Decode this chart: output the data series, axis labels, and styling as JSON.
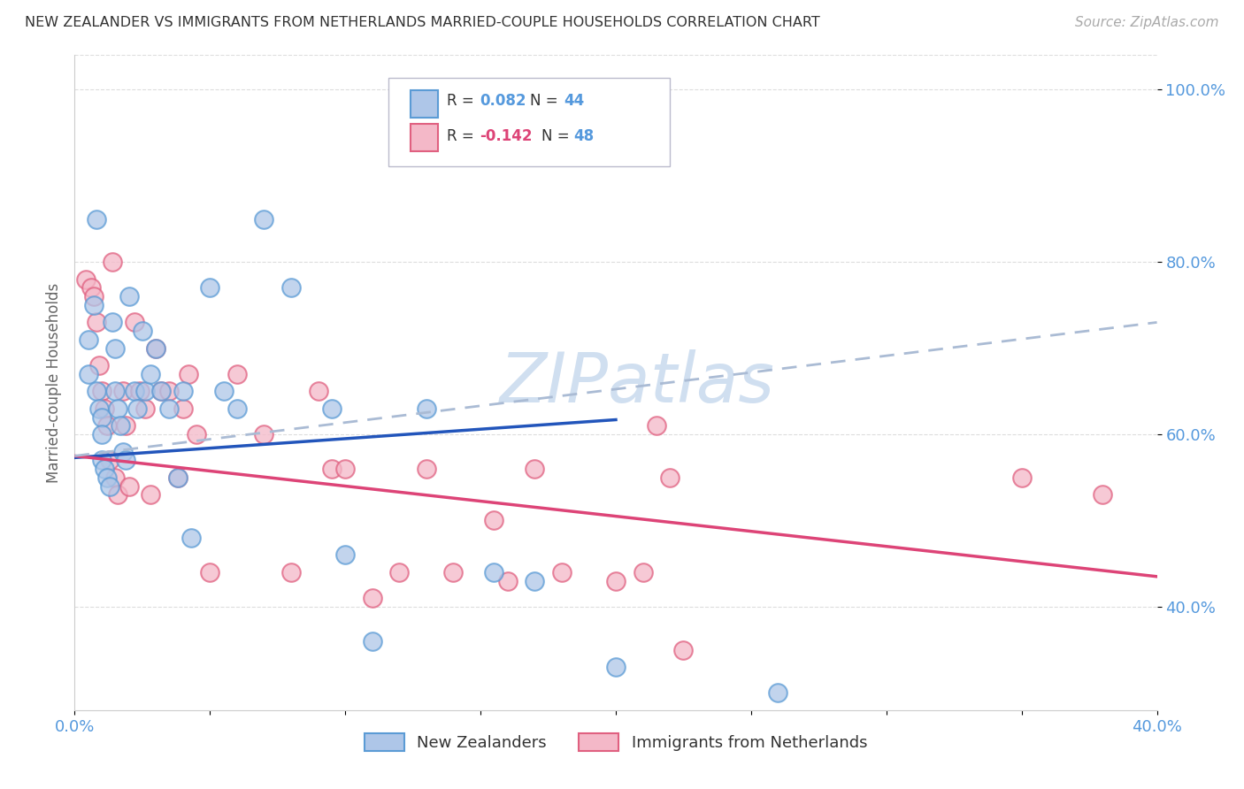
{
  "title": "NEW ZEALANDER VS IMMIGRANTS FROM NETHERLANDS MARRIED-COUPLE HOUSEHOLDS CORRELATION CHART",
  "source": "Source: ZipAtlas.com",
  "ylabel": "Married-couple Households",
  "xlim": [
    0.0,
    0.4
  ],
  "ylim": [
    0.28,
    1.04
  ],
  "yticks": [
    0.4,
    0.6,
    0.8,
    1.0
  ],
  "ytick_labels": [
    "40.0%",
    "60.0%",
    "80.0%",
    "100.0%"
  ],
  "xtick_vals": [
    0.0,
    0.05,
    0.1,
    0.15,
    0.2,
    0.25,
    0.3,
    0.35,
    0.4
  ],
  "xtick_labels": [
    "0.0%",
    "",
    "",
    "",
    "",
    "",
    "",
    "",
    "40.0%"
  ],
  "legend1_label": "New Zealanders",
  "legend2_label": "Immigrants from Netherlands",
  "R1": 0.082,
  "N1": 44,
  "R2": -0.142,
  "N2": 48,
  "blue_fill": "#AEC6E8",
  "blue_edge": "#5B9BD5",
  "pink_fill": "#F4B8C8",
  "pink_edge": "#E06080",
  "blue_line_color": "#2255BB",
  "pink_line_color": "#DD4477",
  "dashed_line_color": "#AABBD4",
  "axis_tick_color": "#5599DD",
  "grid_color": "#DDDDDD",
  "title_color": "#333333",
  "source_color": "#AAAAAA",
  "background_color": "#FFFFFF",
  "watermark_color": "#D0DFF0",
  "blue_dots_x": [
    0.005,
    0.005,
    0.007,
    0.008,
    0.008,
    0.009,
    0.01,
    0.01,
    0.01,
    0.011,
    0.012,
    0.013,
    0.014,
    0.015,
    0.015,
    0.016,
    0.017,
    0.018,
    0.019,
    0.02,
    0.022,
    0.023,
    0.025,
    0.026,
    0.028,
    0.03,
    0.032,
    0.035,
    0.038,
    0.04,
    0.043,
    0.05,
    0.055,
    0.06,
    0.07,
    0.08,
    0.095,
    0.1,
    0.11,
    0.13,
    0.155,
    0.17,
    0.2,
    0.26
  ],
  "blue_dots_y": [
    0.71,
    0.67,
    0.75,
    0.85,
    0.65,
    0.63,
    0.62,
    0.6,
    0.57,
    0.56,
    0.55,
    0.54,
    0.73,
    0.7,
    0.65,
    0.63,
    0.61,
    0.58,
    0.57,
    0.76,
    0.65,
    0.63,
    0.72,
    0.65,
    0.67,
    0.7,
    0.65,
    0.63,
    0.55,
    0.65,
    0.48,
    0.77,
    0.65,
    0.63,
    0.85,
    0.77,
    0.63,
    0.46,
    0.36,
    0.63,
    0.44,
    0.43,
    0.33,
    0.3
  ],
  "pink_dots_x": [
    0.004,
    0.006,
    0.007,
    0.008,
    0.009,
    0.01,
    0.011,
    0.012,
    0.013,
    0.014,
    0.015,
    0.016,
    0.018,
    0.019,
    0.02,
    0.022,
    0.024,
    0.026,
    0.028,
    0.03,
    0.032,
    0.035,
    0.038,
    0.04,
    0.042,
    0.045,
    0.05,
    0.06,
    0.07,
    0.08,
    0.09,
    0.095,
    0.1,
    0.11,
    0.12,
    0.13,
    0.14,
    0.155,
    0.16,
    0.17,
    0.18,
    0.2,
    0.21,
    0.215,
    0.22,
    0.225,
    0.35,
    0.38
  ],
  "pink_dots_y": [
    0.78,
    0.77,
    0.76,
    0.73,
    0.68,
    0.65,
    0.63,
    0.61,
    0.57,
    0.8,
    0.55,
    0.53,
    0.65,
    0.61,
    0.54,
    0.73,
    0.65,
    0.63,
    0.53,
    0.7,
    0.65,
    0.65,
    0.55,
    0.63,
    0.67,
    0.6,
    0.44,
    0.67,
    0.6,
    0.44,
    0.65,
    0.56,
    0.56,
    0.41,
    0.44,
    0.56,
    0.44,
    0.5,
    0.43,
    0.56,
    0.44,
    0.43,
    0.44,
    0.61,
    0.55,
    0.35,
    0.55,
    0.53
  ],
  "blue_line_x0": 0.0,
  "blue_line_x1": 0.2,
  "blue_line_y0": 0.573,
  "blue_line_y1": 0.617,
  "pink_line_x0": 0.0,
  "pink_line_x1": 0.4,
  "pink_line_y0": 0.575,
  "pink_line_y1": 0.435,
  "dashed_line_x0": 0.0,
  "dashed_line_x1": 0.4,
  "dashed_line_y0": 0.575,
  "dashed_line_y1": 0.73
}
